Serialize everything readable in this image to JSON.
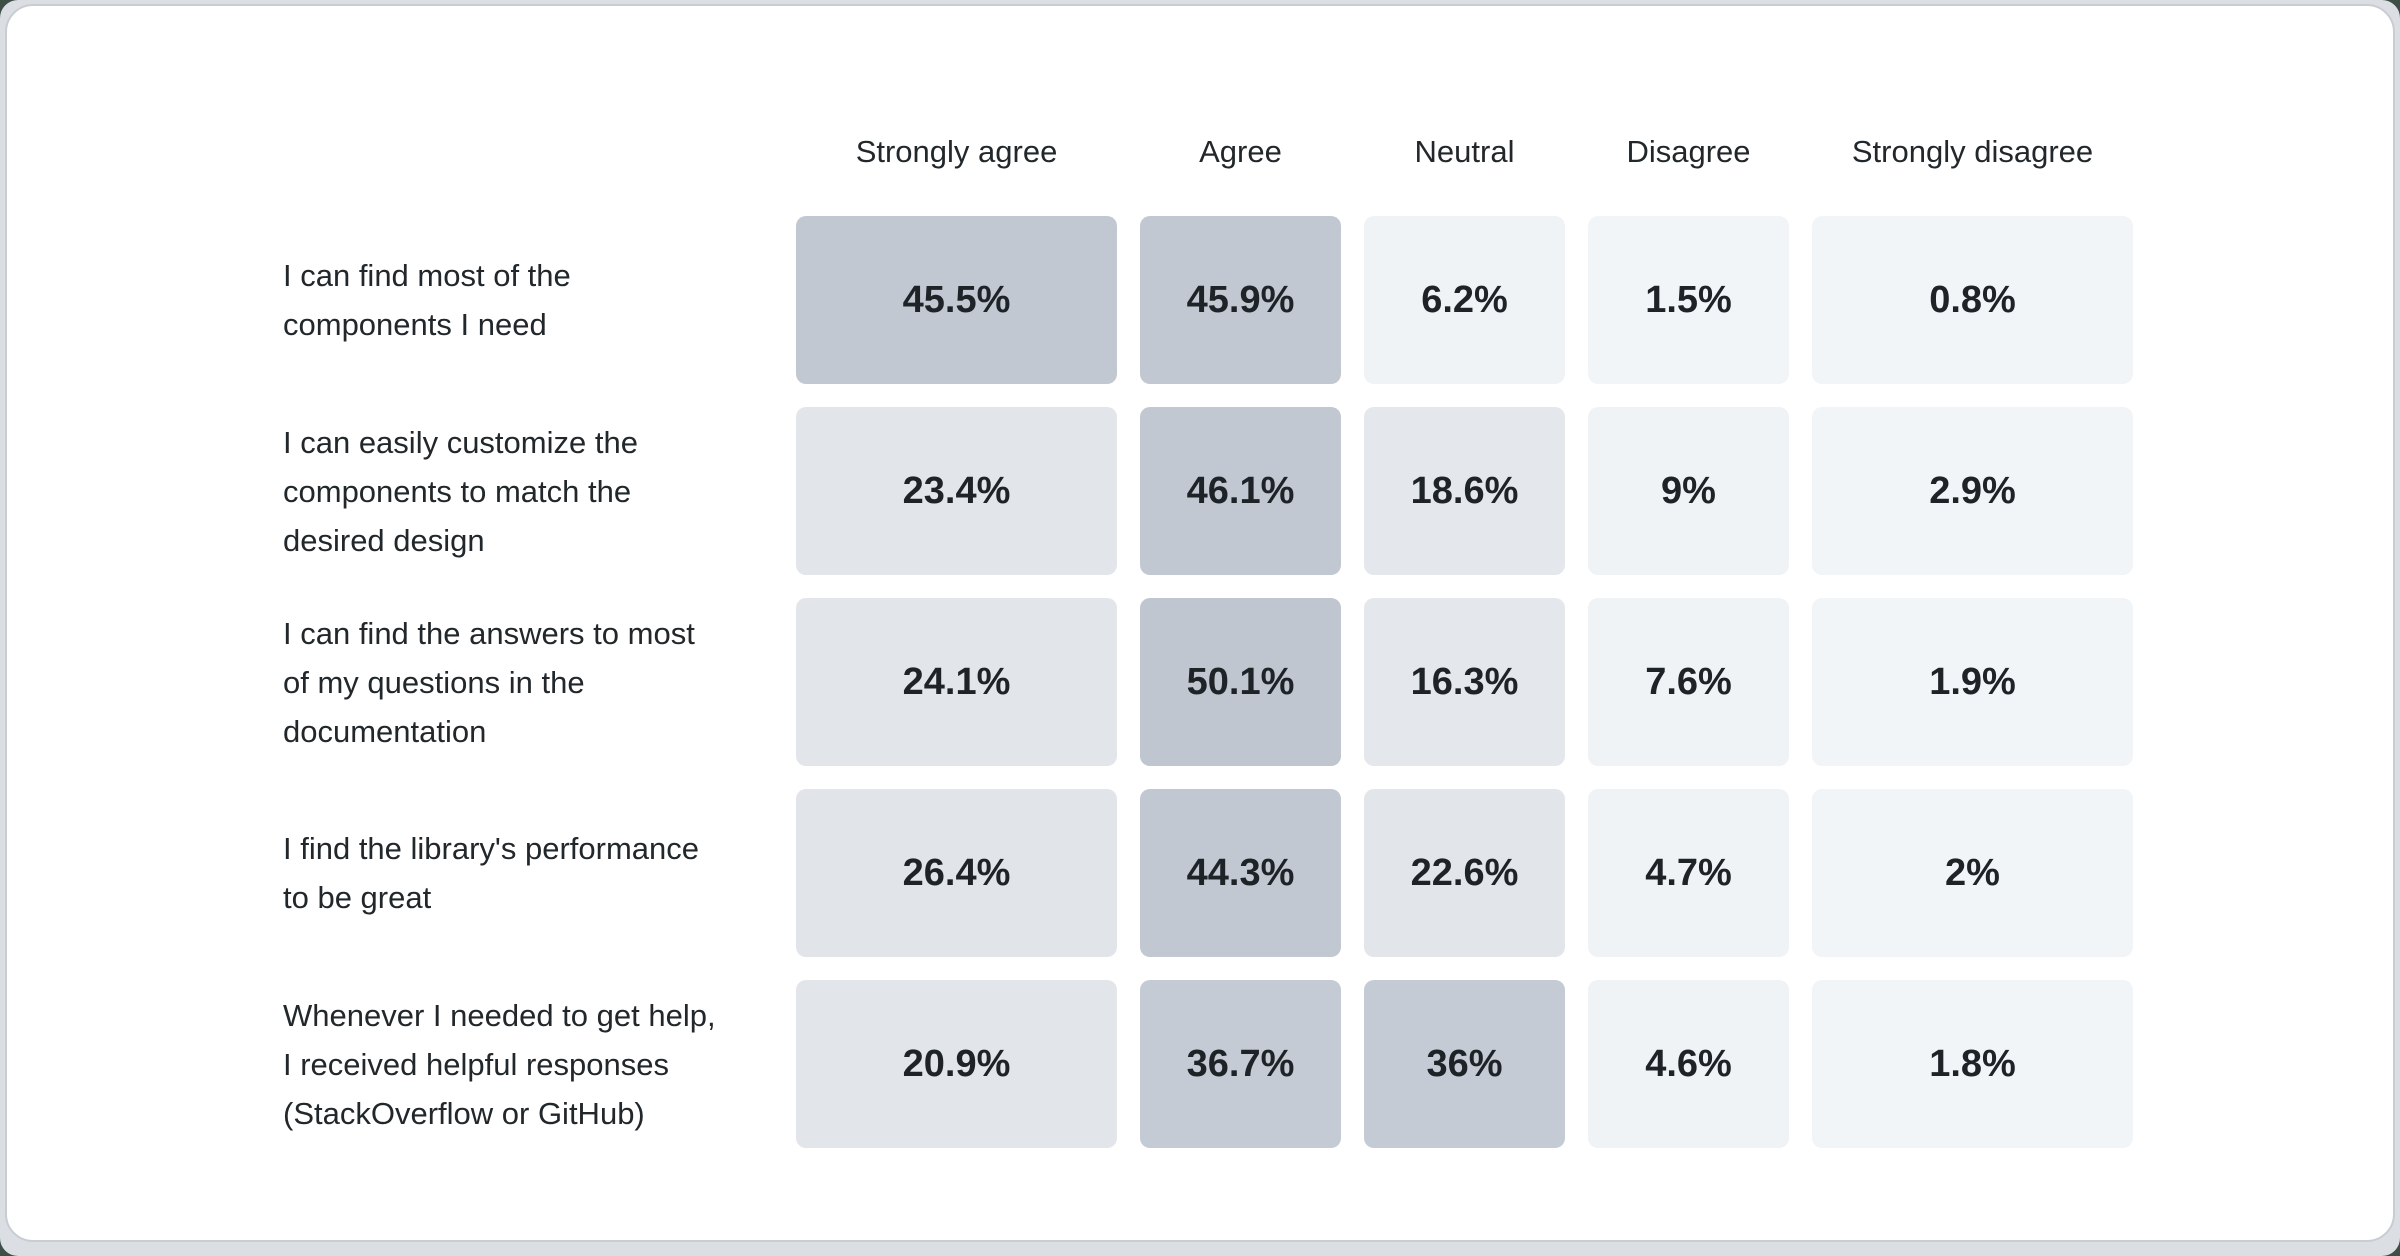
{
  "page": {
    "outer_background": "#3e4f47",
    "frame_background": "#dbdfe3",
    "card_background": "#ffffff",
    "card_border_color": "#c8cdd3"
  },
  "text_colors": {
    "header": "#21272a",
    "label": "#21272a",
    "value": "#1e2328"
  },
  "chart_data": {
    "type": "heatmap",
    "title": "",
    "xlabel": "",
    "ylabel": "",
    "legend": "none",
    "grid": "off",
    "columns": [
      "Strongly agree",
      "Agree",
      "Neutral",
      "Disagree",
      "Strongly disagree"
    ],
    "rows": [
      {
        "label": "I can find most of the\ncomponents I need",
        "values": [
          45.5,
          45.9,
          6.2,
          1.5,
          0.8
        ],
        "display": [
          "45.5%",
          "45.9%",
          "6.2%",
          "1.5%",
          "0.8%"
        ],
        "colors": [
          "#c2c8d1",
          "#c2c8d1",
          "#f0f3f6",
          "#f2f5f8",
          "#f2f5f8"
        ]
      },
      {
        "label": "I can easily customize the\ncomponents to match the\ndesired design",
        "values": [
          23.4,
          46.1,
          18.6,
          9,
          2.9
        ],
        "display": [
          "23.4%",
          "46.1%",
          "18.6%",
          "9%",
          "2.9%"
        ],
        "colors": [
          "#e2e6ea",
          "#c2c8d1",
          "#e4e7eb",
          "#f0f3f6",
          "#f2f5f8"
        ]
      },
      {
        "label": "I can find the answers to most\nof my questions in the\ndocumentation",
        "values": [
          24.1,
          50.1,
          16.3,
          7.6,
          1.9
        ],
        "display": [
          "24.1%",
          "50.1%",
          "16.3%",
          "7.6%",
          "1.9%"
        ],
        "colors": [
          "#e2e6ea",
          "#bfc6d0",
          "#e4e7eb",
          "#f0f3f6",
          "#f2f5f8"
        ]
      },
      {
        "label": "I find the library's performance\nto be great",
        "values": [
          26.4,
          44.3,
          22.6,
          4.7,
          2
        ],
        "display": [
          "26.4%",
          "44.3%",
          "22.6%",
          "4.7%",
          "2%"
        ],
        "colors": [
          "#e1e5ea",
          "#c2c8d1",
          "#e2e6ea",
          "#f0f3f6",
          "#f2f5f8"
        ]
      },
      {
        "label": "Whenever I needed to get help,\nI received helpful responses\n(StackOverflow or GitHub)",
        "values": [
          20.9,
          36.7,
          36,
          4.6,
          1.8
        ],
        "display": [
          "20.9%",
          "36.7%",
          "36%",
          "4.6%",
          "1.8%"
        ],
        "colors": [
          "#e2e6ea",
          "#c5cbd4",
          "#c5cbd4",
          "#f0f3f6",
          "#f2f5f8"
        ]
      }
    ],
    "color_scale": {
      "min": 0,
      "max": 50.1,
      "low_color": "#f2f5f8",
      "high_color": "#bfc6d0"
    }
  }
}
